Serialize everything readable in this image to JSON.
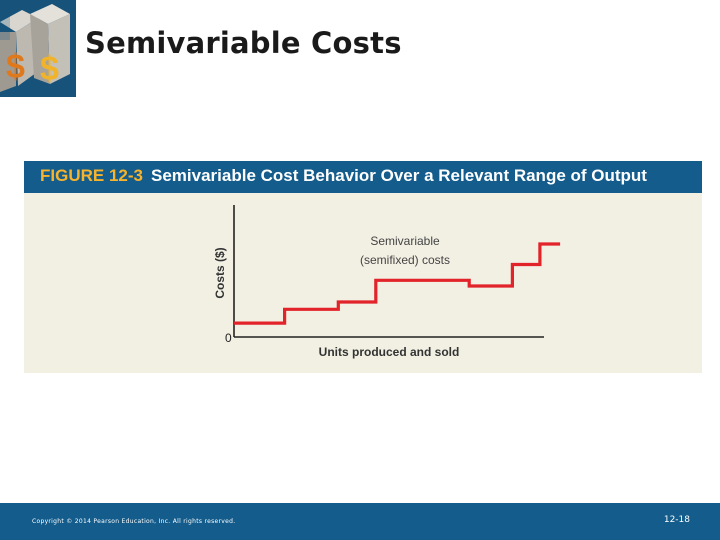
{
  "slide": {
    "title": "Semivariable Costs",
    "copyright": "Copyright © 2014 Pearson Education, Inc. All rights reserved.",
    "slide_number": "12-18"
  },
  "figure": {
    "number": "FIGURE 12-3",
    "caption": "Semivariable Cost Behavior Over a Relevant Range of Output"
  },
  "colors": {
    "header_blue": "#135c8c",
    "figure_number_orange": "#f7b32b",
    "cost_line_red": "#e2232a",
    "figure_background": "#f2efe3"
  },
  "icons": [
    "dollar-dice-logo-icon"
  ],
  "chart_data": {
    "type": "line",
    "title": "",
    "xlabel": "Units produced and sold",
    "ylabel": "Costs ($)",
    "y_tick_labels": [
      "0"
    ],
    "annotation": [
      "Semivariable",
      "(semifixed) costs"
    ],
    "step_line": true,
    "grid": false,
    "xlim": [
      0,
      10
    ],
    "ylim": [
      0,
      10
    ],
    "series": [
      {
        "x": [
          0,
          1.58,
          1.58,
          3.26,
          3.26,
          4.43,
          4.43,
          7.35,
          7.35,
          8.7,
          8.7,
          9.56,
          9.56,
          10.19
        ],
        "y": [
          1.07,
          1.07,
          2.13,
          2.13,
          2.69,
          2.69,
          4.36,
          4.36,
          3.92,
          3.92,
          5.58,
          5.58,
          7.15,
          7.15
        ]
      }
    ]
  }
}
